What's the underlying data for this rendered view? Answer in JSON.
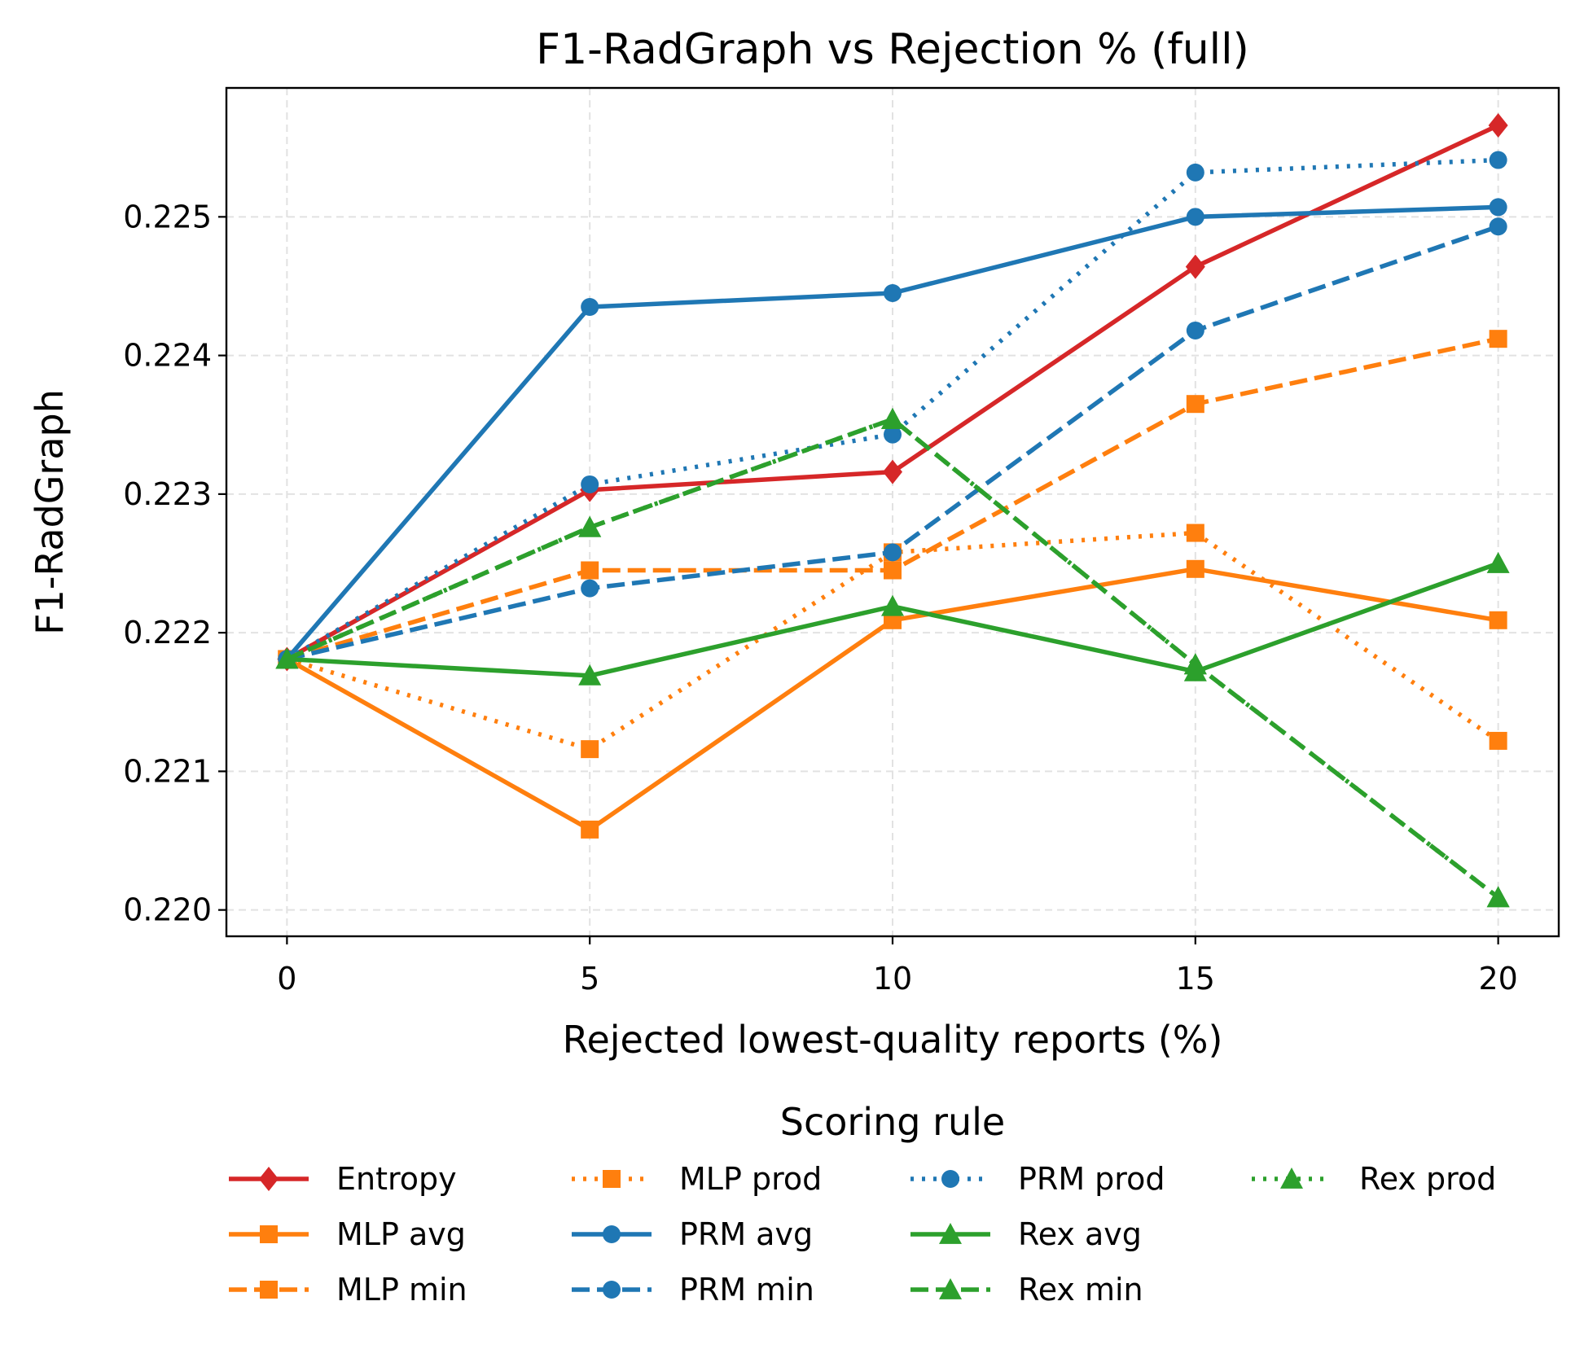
{
  "chart_data": {
    "type": "line",
    "title": "F1-RadGraph vs Rejection % (full)",
    "xlabel": "Rejected lowest-quality reports (%)",
    "ylabel": "F1-RadGraph",
    "x": [
      0,
      5,
      10,
      15,
      20
    ],
    "xlim": [
      -1,
      21
    ],
    "ylim": [
      0.21981,
      0.22593
    ],
    "x_ticks": [
      "0",
      "5",
      "10",
      "15",
      "20"
    ],
    "y_ticks": [
      "0.220",
      "0.221",
      "0.222",
      "0.223",
      "0.224",
      "0.225"
    ],
    "grid": true,
    "legend_title": "Scoring rule",
    "legend_position": "bottom",
    "series": [
      {
        "name": "Entropy",
        "color": "#d62728",
        "marker": "diamond",
        "dash": "solid",
        "values": [
          0.22181,
          0.22303,
          0.22316,
          0.22464,
          0.22566
        ]
      },
      {
        "name": "MLP avg",
        "color": "#ff7f0e",
        "marker": "square",
        "dash": "solid",
        "values": [
          0.22181,
          0.22058,
          0.22209,
          0.22246,
          0.22209
        ]
      },
      {
        "name": "MLP min",
        "color": "#ff7f0e",
        "marker": "square",
        "dash": "dashed",
        "values": [
          0.22181,
          0.22245,
          0.22245,
          0.22365,
          0.22412
        ]
      },
      {
        "name": "MLP prod",
        "color": "#ff7f0e",
        "marker": "square",
        "dash": "dotted",
        "values": [
          0.22181,
          0.22116,
          0.22258,
          0.22272,
          0.22122
        ]
      },
      {
        "name": "PRM avg",
        "color": "#1f77b4",
        "marker": "circle",
        "dash": "solid",
        "values": [
          0.22181,
          0.22435,
          0.22445,
          0.225,
          0.22507
        ]
      },
      {
        "name": "PRM min",
        "color": "#1f77b4",
        "marker": "circle",
        "dash": "dashed",
        "values": [
          0.22181,
          0.22232,
          0.22258,
          0.22418,
          0.22493
        ]
      },
      {
        "name": "PRM prod",
        "color": "#1f77b4",
        "marker": "circle",
        "dash": "dotted",
        "values": [
          0.22181,
          0.22307,
          0.22343,
          0.22532,
          0.22541
        ]
      },
      {
        "name": "Rex avg",
        "color": "#2ca02c",
        "marker": "triangle",
        "dash": "solid",
        "values": [
          0.22181,
          0.22169,
          0.22219,
          0.22172,
          0.2225
        ]
      },
      {
        "name": "Rex min",
        "color": "#2ca02c",
        "marker": "triangle",
        "dash": "dashed",
        "values": [
          0.22181,
          0.22276,
          0.22354,
          0.22177,
          0.22009
        ]
      },
      {
        "name": "Rex prod",
        "color": "#2ca02c",
        "marker": "triangle",
        "dash": "dotted",
        "values": [
          0.22181,
          0.22276,
          0.22354,
          0.22177,
          0.22009
        ]
      }
    ]
  }
}
